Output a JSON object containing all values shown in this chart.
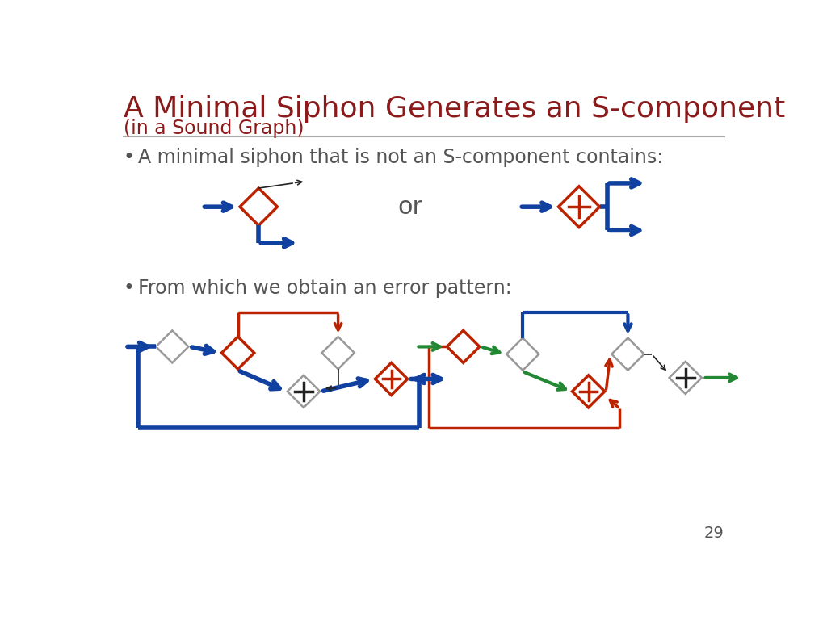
{
  "title": "A Minimal Siphon Generates an S-component",
  "subtitle": "(in a Sound Graph)",
  "title_color": "#8B1A1A",
  "bullet1": "A minimal siphon that is not an S-component contains:",
  "bullet2": "From which we obtain an error pattern:",
  "or_text": "or",
  "page_number": "29",
  "bg_color": "#ffffff",
  "text_color": "#555555",
  "blue_color": "#1040A0",
  "red_color": "#BB2200",
  "green_color": "#228833",
  "gray_color": "#888888",
  "dark_color": "#222222"
}
